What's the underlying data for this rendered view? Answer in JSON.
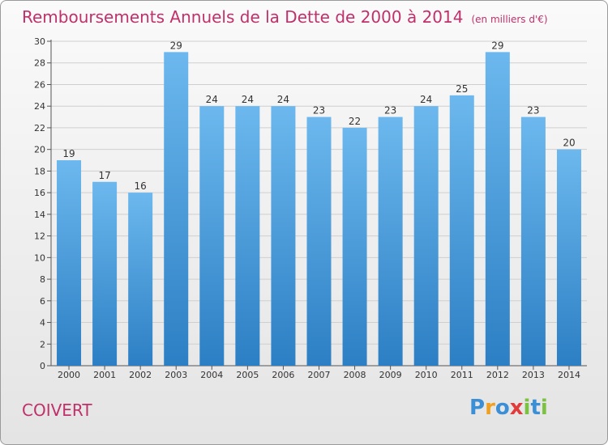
{
  "title": "Remboursements Annuels de la Dette de 2000 à 2014",
  "subtitle": "(en milliers d'€)",
  "commune": "COIVERT",
  "logo": {
    "text": "Proxiti",
    "letters": [
      "P",
      "r",
      "o",
      "x",
      "i",
      "t",
      "i"
    ],
    "colors": [
      "#3a8fd6",
      "#f0a020",
      "#3a8fd6",
      "#e03c3c",
      "#7cc242",
      "#3a8fd6",
      "#7cc242"
    ]
  },
  "colors": {
    "bar_top": "#6cb8ee",
    "bar_bottom": "#2c7fc4",
    "title": "#c0306a",
    "grid": "#cfcfcf"
  },
  "chart_data": {
    "type": "bar",
    "categories": [
      "2000",
      "2001",
      "2002",
      "2003",
      "2004",
      "2005",
      "2006",
      "2007",
      "2008",
      "2009",
      "2010",
      "2011",
      "2012",
      "2013",
      "2014"
    ],
    "values": [
      19,
      17,
      16,
      29,
      24,
      24,
      24,
      23,
      22,
      23,
      24,
      25,
      29,
      23,
      20
    ],
    "title": "Remboursements Annuels de la Dette de 2000 à 2014",
    "subtitle": "(en milliers d'€)",
    "xlabel": "",
    "ylabel": "",
    "ylim": [
      0,
      30
    ],
    "yticks": [
      0,
      2,
      4,
      6,
      8,
      10,
      12,
      14,
      16,
      18,
      20,
      22,
      24,
      26,
      28,
      30
    ],
    "grid": true,
    "data_labels": true
  }
}
